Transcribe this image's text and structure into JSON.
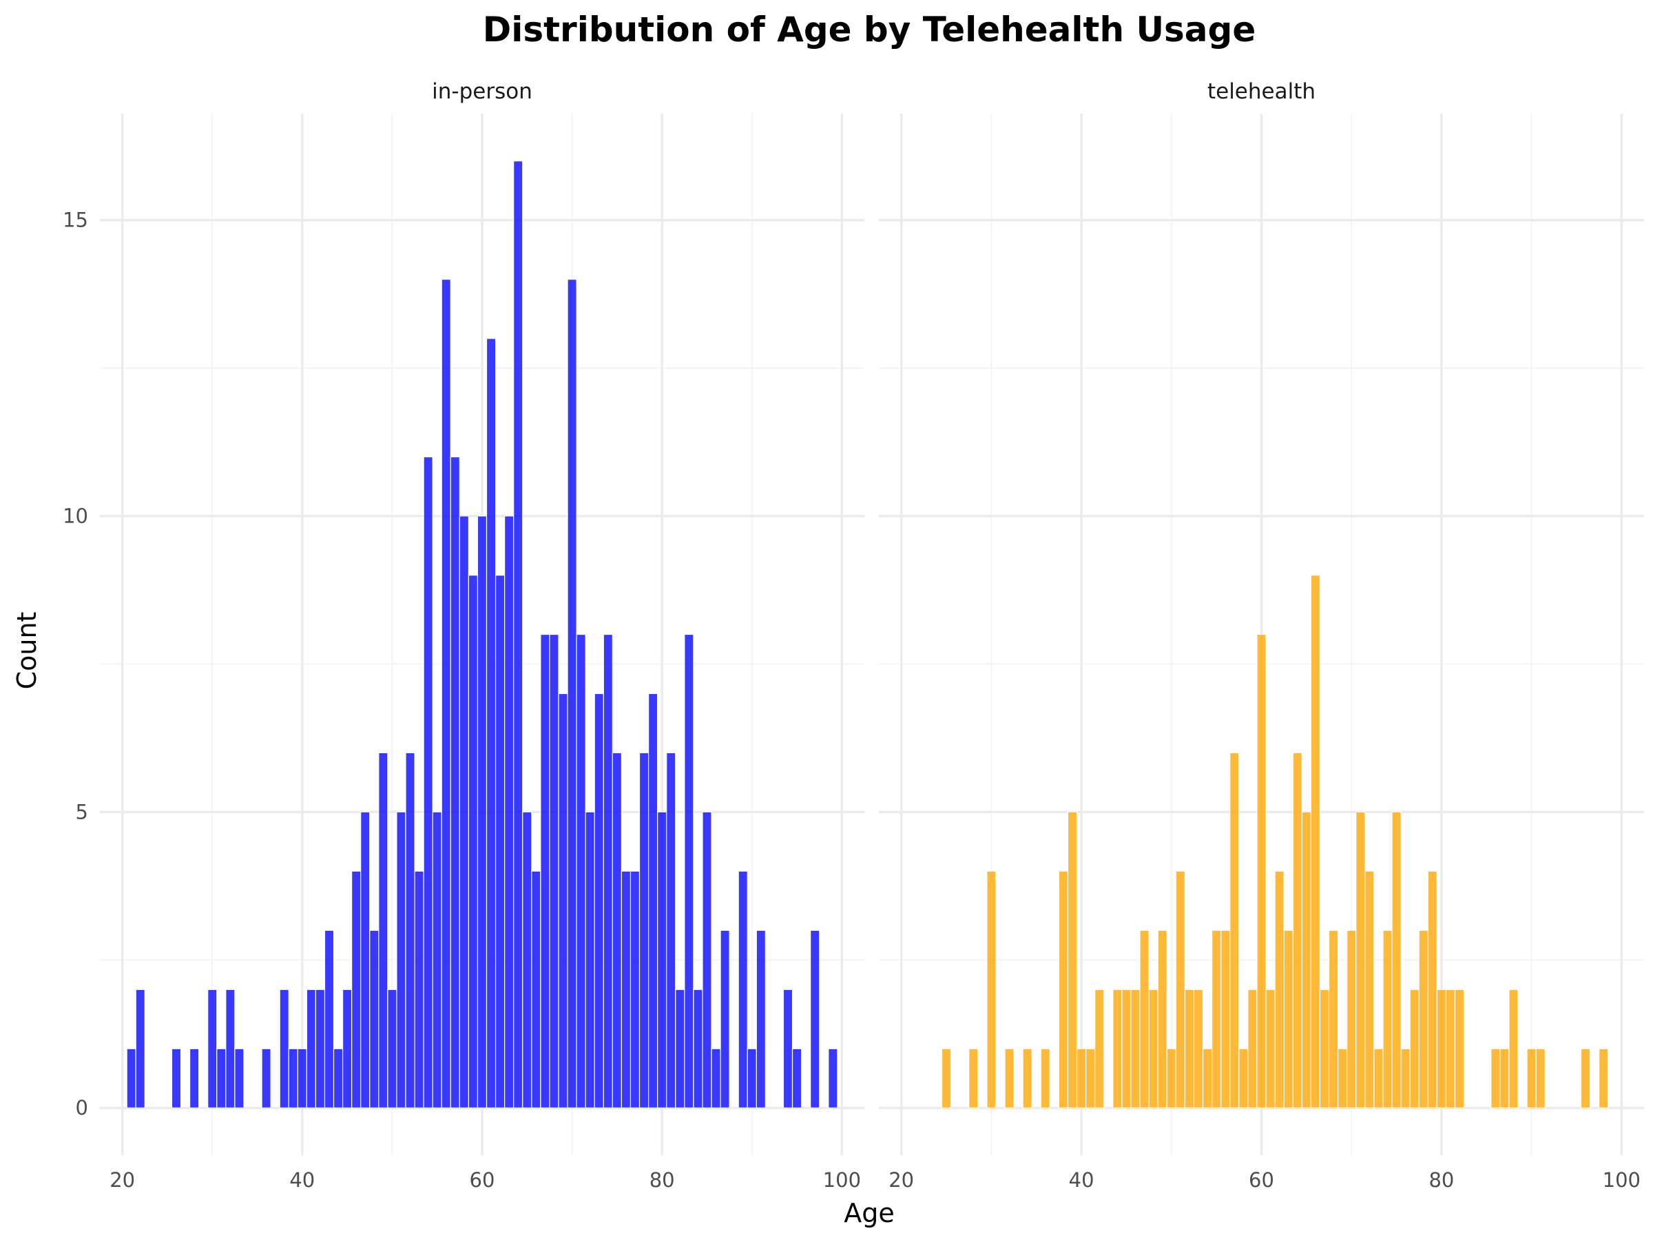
{
  "chart_data": {
    "type": "bar",
    "title": "Distribution of Age by Telehealth Usage",
    "xlabel": "Age",
    "ylabel": "Count",
    "xlim": [
      17.5,
      102.5
    ],
    "ylim": [
      -0.8,
      16.8
    ],
    "x_ticks": [
      20,
      40,
      60,
      80,
      100
    ],
    "y_ticks": [
      0,
      5,
      10,
      15
    ],
    "y_minor_ticks": [
      2.5,
      7.5,
      12.5
    ],
    "x_minor_ticks": [
      30,
      50,
      70,
      90
    ],
    "grid": true,
    "bin_width": 1,
    "panels": [
      {
        "name": "in-person",
        "color": "#0000FF",
        "x": [
          21,
          22,
          26,
          28,
          30,
          31,
          32,
          33,
          36,
          38,
          39,
          40,
          41,
          42,
          43,
          44,
          45,
          46,
          47,
          48,
          49,
          50,
          51,
          52,
          53,
          54,
          55,
          56,
          57,
          58,
          59,
          60,
          61,
          62,
          63,
          64,
          65,
          66,
          67,
          68,
          69,
          70,
          71,
          72,
          73,
          74,
          75,
          76,
          77,
          78,
          79,
          80,
          81,
          82,
          83,
          84,
          85,
          86,
          87,
          89,
          90,
          91,
          94,
          95,
          97,
          99
        ],
        "values": [
          1,
          2,
          1,
          1,
          2,
          1,
          2,
          1,
          1,
          2,
          1,
          1,
          2,
          2,
          3,
          1,
          2,
          4,
          5,
          3,
          6,
          2,
          5,
          6,
          4,
          11,
          5,
          14,
          11,
          10,
          9,
          10,
          13,
          9,
          10,
          16,
          5,
          4,
          8,
          8,
          7,
          14,
          8,
          5,
          7,
          8,
          6,
          4,
          4,
          6,
          7,
          5,
          6,
          2,
          8,
          2,
          5,
          1,
          3,
          4,
          1,
          3,
          2,
          1,
          3,
          1
        ]
      },
      {
        "name": "telehealth",
        "color": "#FFA500",
        "x": [
          25,
          28,
          30,
          32,
          34,
          36,
          38,
          39,
          40,
          41,
          42,
          44,
          45,
          46,
          47,
          48,
          49,
          50,
          51,
          52,
          53,
          54,
          55,
          56,
          57,
          58,
          59,
          60,
          61,
          62,
          63,
          64,
          65,
          66,
          67,
          68,
          69,
          70,
          71,
          72,
          73,
          74,
          75,
          76,
          77,
          78,
          79,
          80,
          81,
          82,
          86,
          87,
          88,
          90,
          91,
          96,
          98
        ],
        "values": [
          1,
          1,
          4,
          1,
          1,
          1,
          4,
          5,
          1,
          1,
          2,
          2,
          2,
          2,
          3,
          2,
          3,
          1,
          4,
          2,
          2,
          1,
          3,
          3,
          6,
          1,
          2,
          8,
          2,
          4,
          3,
          6,
          5,
          9,
          2,
          3,
          1,
          3,
          5,
          4,
          1,
          3,
          5,
          1,
          2,
          3,
          4,
          2,
          2,
          2,
          1,
          1,
          2,
          1,
          1,
          1,
          1
        ]
      }
    ]
  },
  "colors": {
    "grid_major": "#EBEBEB",
    "grid_minor": "#F4F4F4",
    "tick_label": "#4D4D4D",
    "text": "#000000"
  }
}
